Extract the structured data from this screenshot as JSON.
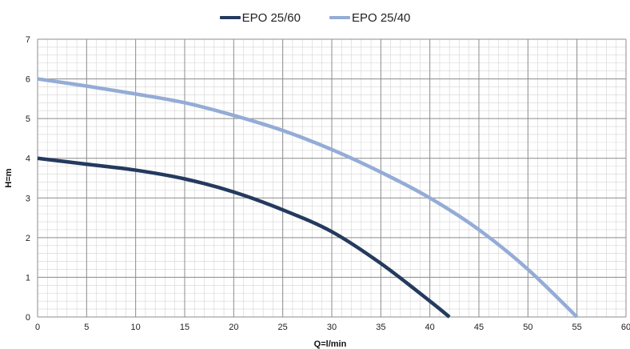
{
  "chart_data": {
    "type": "line",
    "title": "",
    "xlabel": "Q=l/min",
    "ylabel": "H=m",
    "xlim": [
      0,
      60
    ],
    "ylim": [
      0,
      7
    ],
    "x_ticks": [
      "0",
      "5",
      "10",
      "15",
      "20",
      "25",
      "30",
      "35",
      "40",
      "45",
      "50",
      "55",
      "60"
    ],
    "y_ticks": [
      "0",
      "1",
      "2",
      "3",
      "4",
      "5",
      "6",
      "7"
    ],
    "grid": true,
    "legend_position": "top-center",
    "series": [
      {
        "name": "EPO 25/60",
        "color": "#243a5e",
        "x": [
          0,
          5,
          10,
          15,
          20,
          25,
          30,
          35,
          40,
          42
        ],
        "y": [
          4.0,
          3.85,
          3.7,
          3.48,
          3.15,
          2.7,
          2.15,
          1.35,
          0.4,
          0.0
        ]
      },
      {
        "name": "EPO 25/40",
        "color": "#94acd6",
        "x": [
          0,
          5,
          10,
          15,
          20,
          25,
          30,
          35,
          40,
          45,
          50,
          55
        ],
        "y": [
          6.0,
          5.82,
          5.62,
          5.4,
          5.08,
          4.7,
          4.22,
          3.65,
          3.0,
          2.2,
          1.2,
          0.0
        ]
      }
    ]
  }
}
